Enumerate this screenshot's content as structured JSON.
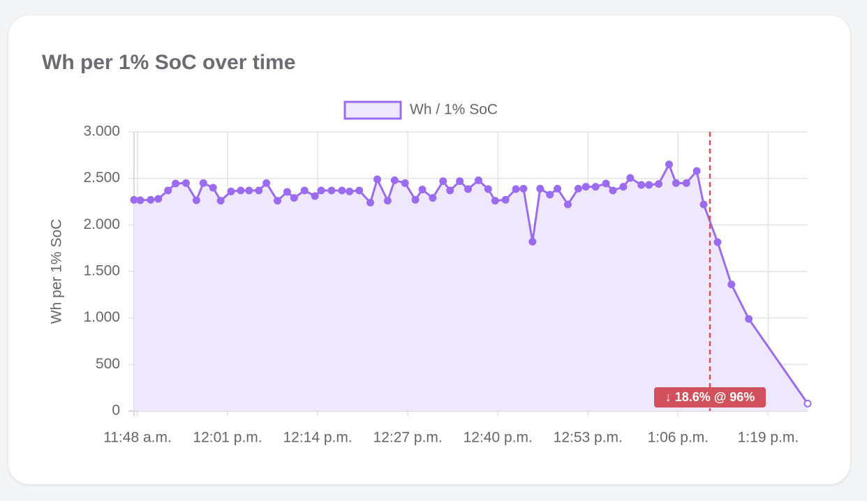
{
  "chart_data": {
    "type": "line",
    "title": "Wh per 1% SoC over time",
    "y_label": "Wh per 1% SoC",
    "xlim": [
      707.5,
      804.7
    ],
    "xticks": [
      {
        "value": 708,
        "label": "11:48 a.m."
      },
      {
        "value": 721,
        "label": "12:01 p.m."
      },
      {
        "value": 734,
        "label": "12:14 p.m."
      },
      {
        "value": 747,
        "label": "12:27 p.m."
      },
      {
        "value": 760,
        "label": "12:40 p.m."
      },
      {
        "value": 773,
        "label": "12:53 p.m."
      },
      {
        "value": 786,
        "label": "1:06 p.m."
      },
      {
        "value": 799,
        "label": "1:19 p.m."
      }
    ],
    "ylim": [
      0,
      3000
    ],
    "yticks": [
      0,
      500,
      {
        "value": 1000,
        "label": "1.000"
      },
      {
        "value": 1500,
        "label": "1.500"
      },
      {
        "value": 2000,
        "label": "2.000"
      },
      {
        "value": 2500,
        "label": "2.500"
      },
      {
        "value": 3000,
        "label": "3.000"
      }
    ],
    "grid": true,
    "legend": "top",
    "series": [
      {
        "name": "Wh / 1% SoC",
        "color": "#9b6cf0",
        "fill": "#efe8fd",
        "x": [
          707.5,
          708.4,
          709.9,
          711.0,
          712.4,
          713.5,
          715.0,
          716.5,
          717.5,
          718.9,
          720.0,
          721.5,
          722.9,
          724.1,
          725.5,
          726.6,
          728.2,
          729.6,
          730.6,
          732.1,
          733.6,
          734.5,
          736.0,
          737.5,
          738.6,
          740.0,
          741.6,
          742.6,
          744.1,
          745.1,
          746.6,
          748.1,
          749.1,
          750.6,
          752.1,
          753.1,
          754.5,
          755.7,
          757.2,
          758.6,
          759.6,
          761.1,
          762.6,
          763.7,
          765.0,
          766.1,
          767.5,
          768.6,
          770.1,
          771.6,
          772.7,
          774.1,
          775.6,
          776.6,
          778.1,
          779.1,
          780.7,
          781.8,
          783.2,
          784.7,
          785.7,
          787.2,
          788.7,
          789.7,
          791.7,
          793.7,
          796.2,
          804.7
        ],
        "values": [
          2270,
          2265,
          2270,
          2280,
          2370,
          2445,
          2450,
          2265,
          2450,
          2400,
          2260,
          2360,
          2370,
          2370,
          2370,
          2450,
          2260,
          2355,
          2290,
          2370,
          2310,
          2370,
          2370,
          2370,
          2360,
          2370,
          2240,
          2490,
          2260,
          2480,
          2450,
          2270,
          2380,
          2290,
          2470,
          2370,
          2470,
          2385,
          2480,
          2385,
          2260,
          2270,
          2385,
          2390,
          1820,
          2390,
          2325,
          2390,
          2220,
          2390,
          2410,
          2410,
          2445,
          2370,
          2410,
          2505,
          2430,
          2430,
          2440,
          2650,
          2450,
          2450,
          2580,
          2220,
          1815,
          1360,
          990,
          80
        ]
      }
    ],
    "annotations": [
      {
        "x": 790.6,
        "label": "↓ 18.6% @ 96%",
        "color": "#d0505c"
      }
    ]
  }
}
